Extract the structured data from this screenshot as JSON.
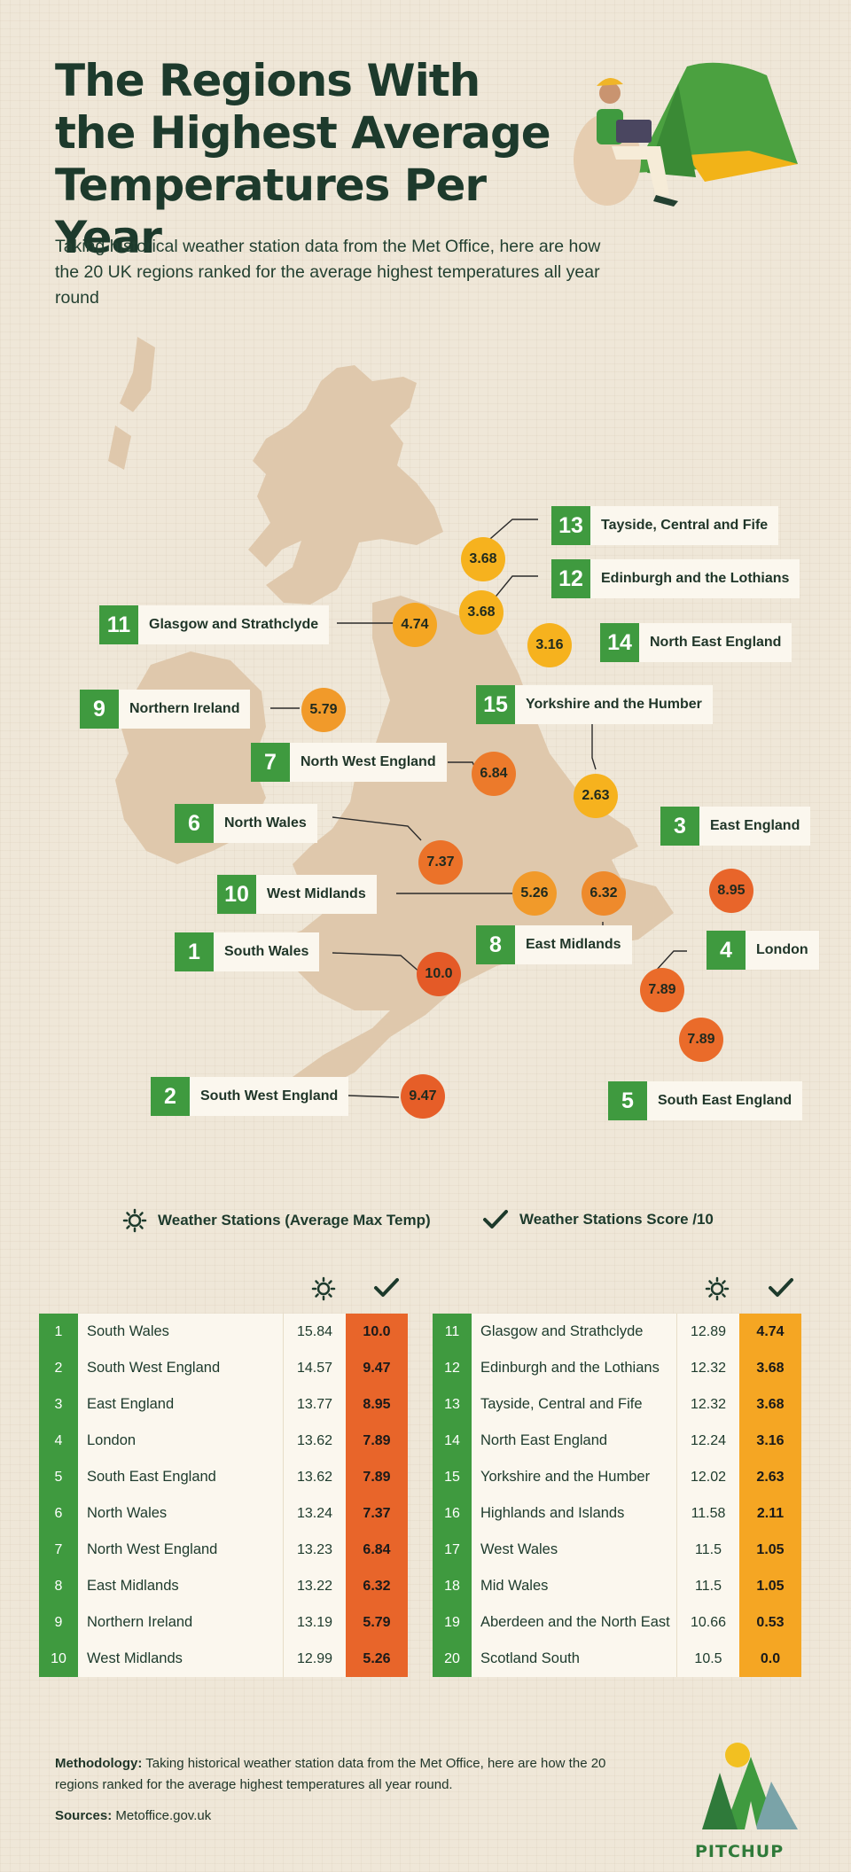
{
  "header": {
    "title_line1": "The Regions With",
    "title_line2": "the Highest Average",
    "title_line3": "Temperatures Per Year",
    "subtitle": "Taking historical weather station data from the Met Office, here are how the 20 UK regions ranked for the average highest temperatures all year round"
  },
  "map": {
    "callouts": [
      {
        "rank": "13",
        "name": "Tayside, Central and Fife",
        "score": "3.68"
      },
      {
        "rank": "12",
        "name": "Edinburgh and the Lothians",
        "score": "3.68"
      },
      {
        "rank": "11",
        "name": "Glasgow and Strathclyde",
        "score": "4.74"
      },
      {
        "rank": "14",
        "name": "North East England",
        "score": "3.16"
      },
      {
        "rank": "9",
        "name": "Northern Ireland",
        "score": "5.79"
      },
      {
        "rank": "15",
        "name": "Yorkshire and the Humber",
        "score": "2.63"
      },
      {
        "rank": "7",
        "name": "North West England",
        "score": "6.84"
      },
      {
        "rank": "6",
        "name": "North Wales",
        "score": "7.37"
      },
      {
        "rank": "3",
        "name": "East England",
        "score": "8.95"
      },
      {
        "rank": "10",
        "name": "West Midlands",
        "score": "5.26"
      },
      {
        "rank": "8",
        "name": "East Midlands",
        "score": "6.32"
      },
      {
        "rank": "1",
        "name": "South Wales",
        "score": "10.0"
      },
      {
        "rank": "4",
        "name": "London",
        "score": "7.89"
      },
      {
        "rank": "5",
        "name": "South East England",
        "score": "7.89"
      },
      {
        "rank": "2",
        "name": "South West England",
        "score": "9.47"
      }
    ]
  },
  "legend": {
    "temp_label": "Weather Stations (Average Max Temp)",
    "score_label": "Weather Stations Score /10",
    "temp_icon": "sun-icon",
    "score_icon": "checkmark-icon"
  },
  "table_left": [
    {
      "rank": "1",
      "region": "South Wales",
      "temp": "15.84",
      "score": "10.0"
    },
    {
      "rank": "2",
      "region": "South West England",
      "temp": "14.57",
      "score": "9.47"
    },
    {
      "rank": "3",
      "region": "East England",
      "temp": "13.77",
      "score": "8.95"
    },
    {
      "rank": "4",
      "region": "London",
      "temp": "13.62",
      "score": "7.89"
    },
    {
      "rank": "5",
      "region": "South East England",
      "temp": "13.62",
      "score": "7.89"
    },
    {
      "rank": "6",
      "region": "North Wales",
      "temp": "13.24",
      "score": "7.37"
    },
    {
      "rank": "7",
      "region": "North West England",
      "temp": "13.23",
      "score": "6.84"
    },
    {
      "rank": "8",
      "region": "East Midlands",
      "temp": "13.22",
      "score": "6.32"
    },
    {
      "rank": "9",
      "region": "Northern Ireland",
      "temp": "13.19",
      "score": "5.79"
    },
    {
      "rank": "10",
      "region": "West Midlands",
      "temp": "12.99",
      "score": "5.26"
    }
  ],
  "table_right": [
    {
      "rank": "11",
      "region": "Glasgow and Strathclyde",
      "temp": "12.89",
      "score": "4.74"
    },
    {
      "rank": "12",
      "region": "Edinburgh and the Lothians",
      "temp": "12.32",
      "score": "3.68"
    },
    {
      "rank": "13",
      "region": "Tayside, Central and Fife",
      "temp": "12.32",
      "score": "3.68"
    },
    {
      "rank": "14",
      "region": "North East England",
      "temp": "12.24",
      "score": "3.16"
    },
    {
      "rank": "15",
      "region": "Yorkshire and the Humber",
      "temp": "12.02",
      "score": "2.63"
    },
    {
      "rank": "16",
      "region": "Highlands and Islands",
      "temp": "11.58",
      "score": "2.11"
    },
    {
      "rank": "17",
      "region": "West Wales",
      "temp": "11.5",
      "score": "1.05"
    },
    {
      "rank": "18",
      "region": "Mid Wales",
      "temp": "11.5",
      "score": "1.05"
    },
    {
      "rank": "19",
      "region": "Aberdeen and the North East",
      "temp": "10.66",
      "score": "0.53"
    },
    {
      "rank": "20",
      "region": "Scotland South",
      "temp": "10.5",
      "score": "0.0"
    }
  ],
  "footer": {
    "methodology_label": "Methodology:",
    "methodology_text": " Taking historical weather station data from the Met Office, here are how the 20 regions ranked for the average highest temperatures all year round.",
    "sources_label": "Sources:",
    "sources_text": " Metoffice.gov.uk",
    "brand": "PITCHUP"
  },
  "colors": {
    "green": "#3f9a3f",
    "dark_green": "#1d3a2c",
    "hot": "#e8652a",
    "warm": "#ef8a2c",
    "mild": "#f4a623",
    "cool": "#f6b21e",
    "land": "#dfc8ac"
  }
}
